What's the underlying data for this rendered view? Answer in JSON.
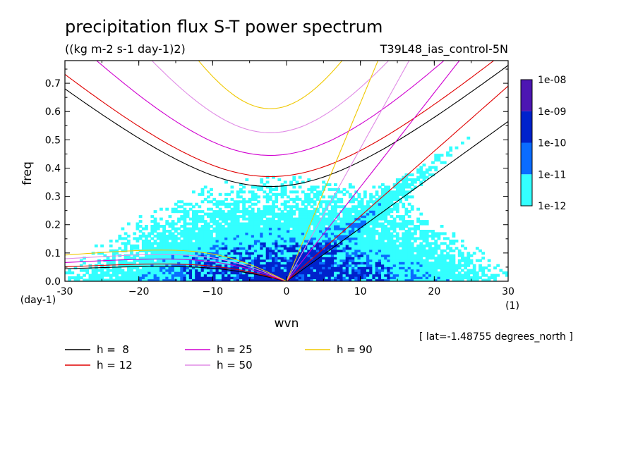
{
  "chart_data": {
    "type": "heatmap",
    "title": "precipitation flux S-T power spectrum",
    "units": "((kg m-2 s-1 day-1)2)",
    "run_label": "T39L48_ias_control-5N",
    "xlabel": "wvn",
    "ylabel": "freq",
    "x_units": "(1)",
    "y_units": "(day-1)",
    "xlim": [
      -30,
      30
    ],
    "ylim": [
      0,
      0.78
    ],
    "x_ticks": [
      -30,
      -20,
      -10,
      0,
      10,
      20,
      30
    ],
    "x_tick_labels": [
      "-30",
      "−20",
      "−10",
      "0",
      "10",
      "20",
      "30"
    ],
    "y_ticks": [
      0,
      0.1,
      0.2,
      0.3,
      0.4,
      0.5,
      0.6,
      0.7
    ],
    "y_tick_labels": [
      "0.0",
      "0.1",
      "0.2",
      "0.3",
      "0.4",
      "0.5",
      "0.6",
      "0.7"
    ],
    "annotation": "[ lat=-1.48755 degrees_north ]",
    "colorbar": {
      "levels": [
        "1e-12",
        "1e-11",
        "1e-10",
        "1e-09",
        "1e-08"
      ],
      "colors": [
        "#33ffff",
        "#0a6cff",
        "#0022cc",
        "#4d16b3"
      ]
    },
    "dispersion_curves": [
      {
        "label": "h =  8",
        "h": 8,
        "color": "#000000"
      },
      {
        "label": "h = 12",
        "h": 12,
        "color": "#e00000"
      },
      {
        "label": "h = 25",
        "h": 25,
        "color": "#d000d0"
      },
      {
        "label": "h = 50",
        "h": 50,
        "color": "#e08be6"
      },
      {
        "label": "h = 90",
        "h": 90,
        "color": "#f0c800"
      }
    ],
    "equatorial_wave_curves": [
      {
        "type": "eig_n1",
        "h": 8,
        "min_freq": 0.335,
        "min_wvn": -2.2
      },
      {
        "type": "eig_n1",
        "h": 12,
        "min_freq": 0.37,
        "min_wvn": -2.2
      },
      {
        "type": "eig_n1",
        "h": 25,
        "min_freq": 0.445,
        "min_wvn": -2.2
      },
      {
        "type": "eig_n1",
        "h": 50,
        "min_freq": 0.525,
        "min_wvn": -2.2
      },
      {
        "type": "eig_n1",
        "h": 90,
        "min_freq": 0.61,
        "min_wvn": -2.2
      },
      {
        "type": "kelvin",
        "h": 8,
        "freq_at_30": 0.565
      },
      {
        "type": "kelvin",
        "h": 12,
        "freq_at_30": 0.69
      },
      {
        "type": "kelvin",
        "h": 25,
        "freq_at_30": 1.0
      },
      {
        "type": "kelvin",
        "h": 50,
        "freq_at_30": 1.41
      },
      {
        "type": "kelvin",
        "h": 90,
        "freq_at_30": 1.89
      },
      {
        "type": "rossby",
        "h": 8,
        "peak_freq": 0.05
      },
      {
        "type": "rossby",
        "h": 12,
        "peak_freq": 0.058
      },
      {
        "type": "rossby",
        "h": 25,
        "peak_freq": 0.075
      },
      {
        "type": "rossby",
        "h": 50,
        "peak_freq": 0.09
      },
      {
        "type": "rossby",
        "h": 90,
        "peak_freq": 0.105
      }
    ]
  }
}
